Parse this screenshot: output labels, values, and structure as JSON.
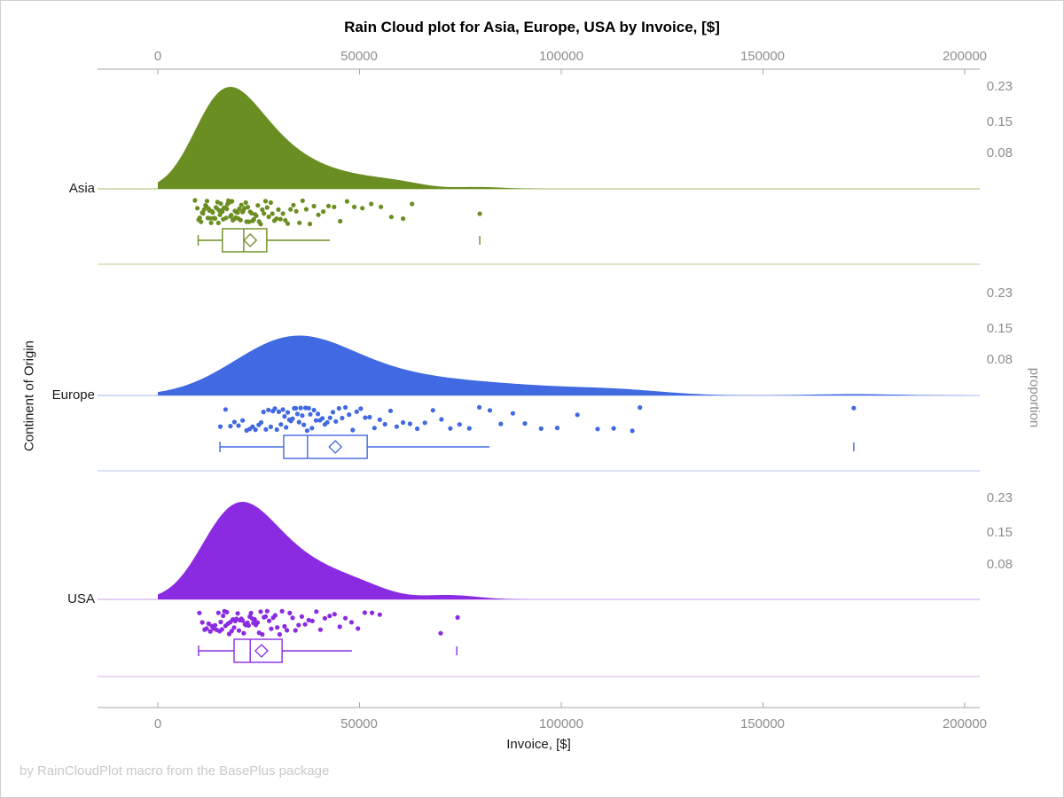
{
  "title": "Rain Cloud plot for Asia, Europe, USA by Invoice, [$]",
  "footer": "by RainCloudPlot macro from the BasePlus package",
  "axes": {
    "x_label": "Invoice, [$]",
    "y_label_left": "Continent of Origin",
    "y_label_right": "proportion",
    "x_ticks": [
      "0",
      "50000",
      "100000",
      "150000",
      "200000"
    ],
    "x_tick_values": [
      0,
      50000,
      100000,
      150000,
      200000
    ],
    "x_range": [
      0,
      200000
    ],
    "proportion_ticks": [
      "0.23",
      "0.15",
      "0.08"
    ],
    "proportion_tick_values": [
      0.23,
      0.15,
      0.08
    ],
    "axis_color": "#a6a6a6",
    "tick_text_color": "#8e8e8e"
  },
  "chart_data": {
    "type": "raincloud",
    "orientation": "horizontal",
    "grid": false,
    "groups": [
      {
        "label": "Asia",
        "color": "#6B8E23",
        "line_color": "#b8cb8e",
        "peak_proportion": 0.23,
        "kde_bandwidth": 6000,
        "box": {
          "whisker_low": 10000,
          "q1": 16000,
          "median": 21300,
          "q3": 27000,
          "whisker_high": 42600,
          "mean": 22900,
          "outliers": [
            79800
          ]
        },
        "points": [
          9200,
          9800,
          10100,
          10400,
          10700,
          11000,
          11200,
          11500,
          11800,
          12000,
          12200,
          12400,
          12600,
          12800,
          13000,
          13200,
          13400,
          13600,
          13800,
          14000,
          14200,
          14400,
          14600,
          14800,
          15000,
          15200,
          15400,
          15600,
          15800,
          16000,
          16200,
          16400,
          16700,
          16900,
          17100,
          17300,
          17500,
          17800,
          18000,
          18200,
          18400,
          18600,
          18900,
          19100,
          19300,
          19500,
          19800,
          20000,
          20200,
          20500,
          20700,
          21000,
          21200,
          21500,
          21800,
          22000,
          22300,
          22600,
          22900,
          23200,
          23500,
          23800,
          24100,
          24400,
          24800,
          25100,
          25500,
          25900,
          26300,
          26700,
          27100,
          27500,
          28000,
          28400,
          28900,
          29400,
          29900,
          30400,
          31000,
          31600,
          32200,
          32900,
          33600,
          34300,
          35100,
          35900,
          36800,
          37700,
          38700,
          39800,
          41000,
          42300,
          43700,
          45200,
          46900,
          48700,
          50700,
          52900,
          55300,
          57900,
          60800,
          63000,
          79800
        ]
      },
      {
        "label": "Europe",
        "color": "#4169E1",
        "line_color": "#b7c6f2",
        "peak_proportion": 0.135,
        "kde_bandwidth": 11000,
        "box": {
          "whisker_low": 15400,
          "q1": 31200,
          "median": 37100,
          "q3": 51900,
          "whisker_high": 82200,
          "mean": 44000,
          "outliers": [
            172500
          ]
        },
        "points": [
          15500,
          16800,
          18000,
          19000,
          20000,
          21000,
          22000,
          22800,
          23500,
          24200,
          25000,
          25600,
          26200,
          26800,
          27400,
          28000,
          28500,
          29000,
          29500,
          30000,
          30500,
          31000,
          31400,
          31800,
          32200,
          32600,
          33000,
          33400,
          33800,
          34200,
          34600,
          35000,
          35400,
          35800,
          36200,
          36600,
          37000,
          37400,
          37800,
          38200,
          38700,
          39200,
          39700,
          40200,
          40800,
          41400,
          42000,
          42700,
          43400,
          44100,
          44900,
          45700,
          46500,
          47400,
          48300,
          49300,
          50300,
          51400,
          52500,
          53700,
          55000,
          56300,
          57700,
          59200,
          60800,
          62500,
          64300,
          66200,
          68200,
          70300,
          72500,
          74800,
          77200,
          79700,
          82300,
          85000,
          88000,
          91000,
          95000,
          99000,
          104000,
          109000,
          113000,
          117600,
          119500,
          172500
        ]
      },
      {
        "label": "USA",
        "color": "#8A2BE2",
        "line_color": "#d4b4f0",
        "peak_proportion": 0.22,
        "kde_bandwidth": 6500,
        "box": {
          "whisker_low": 10100,
          "q1": 18900,
          "median": 22900,
          "q3": 30800,
          "whisker_high": 48100,
          "mean": 25700,
          "outliers": [
            74100
          ]
        },
        "points": [
          10300,
          11000,
          11600,
          12100,
          12600,
          13000,
          13400,
          13800,
          14200,
          14600,
          15000,
          15300,
          15600,
          15900,
          16200,
          16500,
          16800,
          17100,
          17400,
          17700,
          18000,
          18300,
          18600,
          18900,
          19200,
          19500,
          19800,
          20100,
          20400,
          20700,
          21000,
          21300,
          21600,
          21900,
          22200,
          22500,
          22800,
          23100,
          23400,
          23700,
          24000,
          24300,
          24700,
          25100,
          25500,
          25900,
          26300,
          26700,
          27100,
          27600,
          28100,
          28600,
          29100,
          29600,
          30200,
          30800,
          31400,
          32000,
          32700,
          33400,
          34100,
          34900,
          35700,
          36500,
          37400,
          38300,
          39300,
          40300,
          41400,
          42600,
          43800,
          45100,
          46500,
          48000,
          49600,
          51300,
          53100,
          55000,
          70100,
          74300
        ]
      }
    ]
  }
}
